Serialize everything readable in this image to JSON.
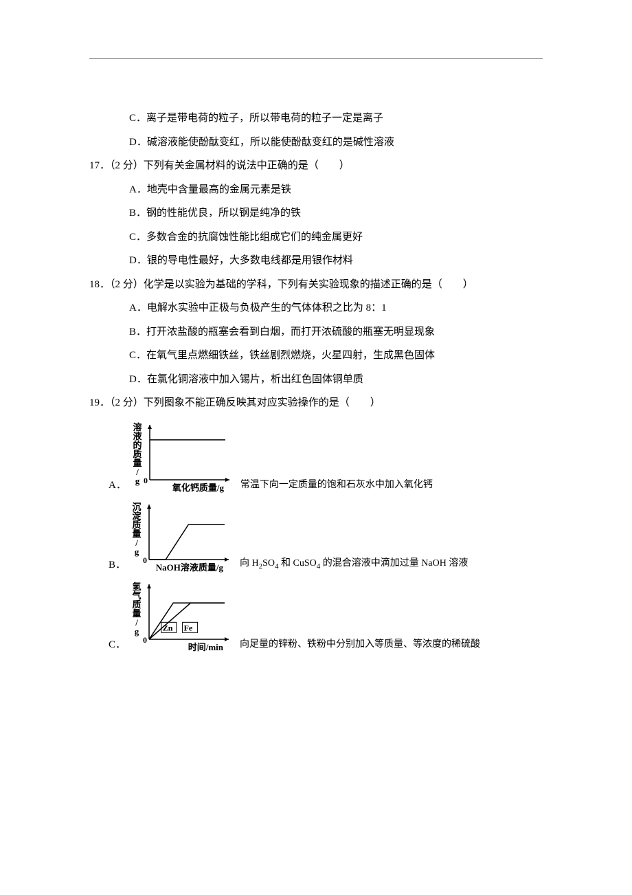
{
  "page": {
    "background_color": "#ffffff",
    "text_color": "#000000",
    "font_family": "SimSun",
    "base_fontsize": 15,
    "line_height": 2.3
  },
  "q16": {
    "options": {
      "C": "C．离子是带电荷的粒子，所以带电荷的粒子一定是离子",
      "D": "D．碱溶液能使酚酞变红，所以能使酚酞变红的是碱性溶液"
    }
  },
  "q17": {
    "stem": "17．（2 分）下列有关金属材料的说法中正确的是（　　）",
    "options": {
      "A": "A．地壳中含量最高的金属元素是铁",
      "B": "B．钢的性能优良，所以钢是纯净的铁",
      "C": "C．多数合金的抗腐蚀性能比组成它们的纯金属更好",
      "D": "D．银的导电性最好，大多数电线都是用银作材料"
    }
  },
  "q18": {
    "stem": "18．（2 分）化学是以实验为基础的学科，下列有关实验现象的描述正确的是（　　）",
    "options": {
      "A": "A．电解水实验中正极与负极产生的气体体积之比为 8：1",
      "B": "B．打开浓盐酸的瓶塞会看到白烟，而打开浓硫酸的瓶塞无明显现象",
      "C": "C．在氧气里点燃细铁丝，铁丝剧烈燃烧，火星四射，生成黑色固体",
      "D": "D．在氯化铜溶液中加入锡片，析出红色固体铜单质"
    }
  },
  "q19": {
    "stem": "19．（2 分）下列图象不能正确反映其对应实验操作的是（　　）",
    "graphs": {
      "A": {
        "letter": "A．",
        "caption": "常温下向一定质量的饱和石灰水中加入氧化钙",
        "chart": {
          "type": "line",
          "ylabel": "溶液的质量/g",
          "xlabel": "氧化钙质量/g",
          "axis_color": "#000000",
          "line_color": "#000000",
          "line_width": 1.5,
          "x_range": [
            0,
            100
          ],
          "y_range": [
            0,
            70
          ],
          "origin_label": "0",
          "curve": [
            [
              0,
              55
            ],
            [
              100,
              55
            ]
          ],
          "label_fontsize": 13,
          "label_fontweight": "bold"
        }
      },
      "B": {
        "letter": "B．",
        "caption_prefix": "向 H",
        "caption_sub1": "2",
        "caption_mid1": "SO",
        "caption_sub2": "4",
        "caption_mid2": " 和 CuSO",
        "caption_sub3": "4",
        "caption_mid3": " 的混合溶液中滴加过量 NaOH 溶液",
        "chart": {
          "type": "line",
          "ylabel": "沉淀质量/g",
          "xlabel": "NaOH溶液质量/g",
          "axis_color": "#000000",
          "line_color": "#000000",
          "line_width": 1.5,
          "x_range": [
            0,
            100
          ],
          "y_range": [
            0,
            70
          ],
          "origin_label": "0",
          "curve": [
            [
              0,
              0
            ],
            [
              22,
              0
            ],
            [
              52,
              48
            ],
            [
              100,
              48
            ]
          ],
          "label_fontsize": 13,
          "label_fontweight": "bold"
        }
      },
      "C": {
        "letter": "C．",
        "caption": "向足量的锌粉、铁粉中分别加入等质量、等浓度的稀硫酸",
        "chart": {
          "type": "line-multi",
          "ylabel": "氢气质量/g",
          "xlabel": "时间/min",
          "axis_color": "#000000",
          "line_color": "#000000",
          "line_width": 1.5,
          "x_range": [
            0,
            100
          ],
          "y_range": [
            0,
            70
          ],
          "origin_label": "0",
          "series": [
            {
              "label": "Zn",
              "label_pos": [
                18,
                12
              ],
              "box": true,
              "curve": [
                [
                  0,
                  0
                ],
                [
                  32,
                  50
                ],
                [
                  100,
                  50
                ]
              ]
            },
            {
              "label": "Fe",
              "label_pos": [
                46,
                12
              ],
              "box": true,
              "curve": [
                [
                  0,
                  0
                ],
                [
                  55,
                  50
                ],
                [
                  100,
                  50
                ]
              ]
            }
          ],
          "label_fontsize": 13,
          "label_fontweight": "bold"
        }
      }
    }
  }
}
